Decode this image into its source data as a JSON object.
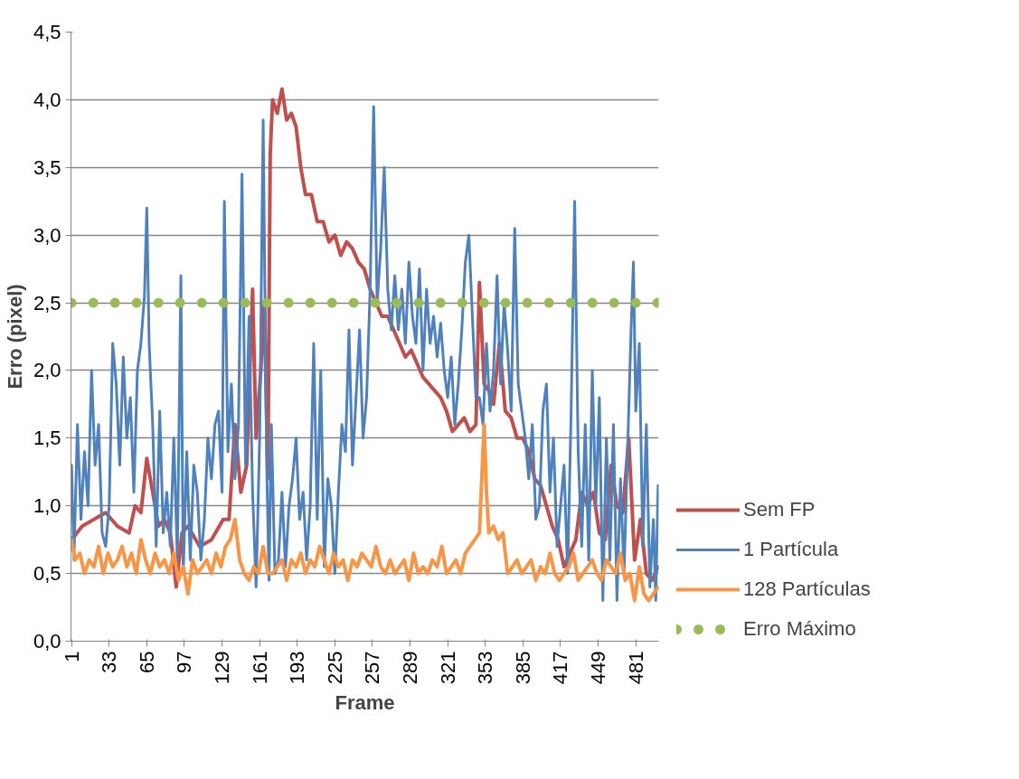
{
  "chart_data": {
    "type": "line",
    "xlabel": "Frame",
    "ylabel": "Erro (pixel)",
    "xlim": [
      0.5,
      500.5
    ],
    "xticks": [
      1,
      33,
      65,
      97,
      129,
      161,
      193,
      225,
      257,
      289,
      321,
      353,
      385,
      417,
      449,
      481
    ],
    "ylim": [
      0,
      4.5
    ],
    "yticks": [
      {
        "value": 0,
        "label": "0,0"
      },
      {
        "value": 0.5,
        "label": "0,5"
      },
      {
        "value": 1,
        "label": "1,0"
      },
      {
        "value": 1.5,
        "label": "1,5"
      },
      {
        "value": 2,
        "label": "2,0"
      },
      {
        "value": 2.5,
        "label": "2,5"
      },
      {
        "value": 3,
        "label": "3,0"
      },
      {
        "value": 3.5,
        "label": "3,5"
      },
      {
        "value": 4,
        "label": "4,0"
      },
      {
        "value": 4.5,
        "label": "4,5"
      }
    ],
    "grid": "y",
    "legend": "right",
    "marker": "none",
    "series": [
      {
        "name": "Sem FP",
        "color": "#c0504d",
        "line_style": "solid",
        "x": [
          1,
          10,
          20,
          30,
          40,
          50,
          55,
          60,
          65,
          70,
          75,
          80,
          85,
          90,
          95,
          100,
          110,
          120,
          130,
          135,
          140,
          145,
          150,
          155,
          158,
          162,
          165,
          168,
          170,
          172,
          176,
          180,
          184,
          188,
          192,
          196,
          200,
          205,
          210,
          215,
          220,
          225,
          230,
          235,
          240,
          245,
          250,
          255,
          260,
          265,
          270,
          275,
          280,
          285,
          290,
          295,
          300,
          305,
          310,
          315,
          320,
          325,
          330,
          335,
          340,
          345,
          348,
          352,
          356,
          360,
          365,
          370,
          375,
          380,
          385,
          390,
          395,
          400,
          405,
          410,
          415,
          420,
          425,
          430,
          435,
          440,
          445,
          450,
          455,
          460,
          465,
          470,
          475,
          480,
          485,
          490,
          495,
          500
        ],
        "values": [
          0.75,
          0.85,
          0.9,
          0.95,
          0.85,
          0.8,
          1.0,
          0.95,
          1.35,
          1.1,
          0.85,
          0.9,
          0.8,
          0.4,
          0.8,
          0.85,
          0.7,
          0.75,
          0.9,
          0.9,
          1.6,
          1.1,
          1.3,
          2.6,
          1.5,
          2.0,
          2.5,
          1.2,
          3.6,
          4.0,
          3.9,
          4.08,
          3.85,
          3.9,
          3.8,
          3.5,
          3.3,
          3.3,
          3.1,
          3.1,
          2.95,
          3.0,
          2.85,
          2.95,
          2.9,
          2.8,
          2.75,
          2.6,
          2.5,
          2.4,
          2.4,
          2.3,
          2.2,
          2.1,
          2.15,
          2.05,
          1.95,
          1.9,
          1.85,
          1.8,
          1.7,
          1.55,
          1.6,
          1.65,
          1.55,
          1.6,
          2.65,
          1.9,
          1.85,
          1.75,
          2.2,
          1.7,
          1.65,
          1.5,
          1.5,
          1.4,
          1.2,
          1.15,
          1.0,
          0.85,
          0.75,
          0.55,
          0.65,
          0.75,
          1.1,
          1.0,
          1.1,
          0.8,
          0.75,
          1.3,
          1.0,
          0.95,
          1.5,
          0.6,
          0.9,
          0.5,
          0.45,
          0.55
        ]
      },
      {
        "name": "1 Partícula",
        "color": "#4f81bd",
        "line_style": "solid",
        "x": [
          1,
          3,
          6,
          9,
          12,
          15,
          18,
          21,
          24,
          27,
          30,
          33,
          36,
          39,
          42,
          45,
          48,
          51,
          54,
          57,
          60,
          63,
          65,
          67,
          70,
          73,
          76,
          79,
          82,
          85,
          88,
          91,
          94,
          96,
          99,
          102,
          105,
          108,
          111,
          114,
          117,
          120,
          123,
          126,
          129,
          131,
          134,
          137,
          140,
          143,
          146,
          149,
          152,
          155,
          158,
          161,
          164,
          167,
          169,
          171,
          174,
          177,
          180,
          183,
          186,
          189,
          192,
          195,
          198,
          201,
          204,
          207,
          210,
          213,
          216,
          219,
          222,
          225,
          228,
          231,
          234,
          237,
          240,
          243,
          246,
          249,
          252,
          255,
          258,
          261,
          264,
          267,
          270,
          273,
          276,
          279,
          282,
          285,
          288,
          291,
          294,
          297,
          300,
          303,
          306,
          309,
          312,
          315,
          318,
          321,
          324,
          327,
          330,
          333,
          336,
          339,
          342,
          345,
          348,
          351,
          354,
          357,
          360,
          363,
          366,
          369,
          372,
          375,
          378,
          381,
          384,
          387,
          390,
          393,
          396,
          399,
          402,
          405,
          408,
          411,
          414,
          417,
          420,
          423,
          426,
          429,
          432,
          435,
          438,
          441,
          444,
          447,
          450,
          453,
          456,
          459,
          462,
          465,
          468,
          471,
          474,
          477,
          479,
          481,
          484,
          487,
          490,
          493,
          496,
          498,
          500
        ],
        "values": [
          1.3,
          0.6,
          1.6,
          0.9,
          1.4,
          1.0,
          2.0,
          1.3,
          1.6,
          0.8,
          0.7,
          1.0,
          2.2,
          1.9,
          1.3,
          2.1,
          1.5,
          1.8,
          1.1,
          2.0,
          2.2,
          2.55,
          3.2,
          2.2,
          1.6,
          0.7,
          1.7,
          0.8,
          1.1,
          0.7,
          1.5,
          0.6,
          2.7,
          0.5,
          1.4,
          0.6,
          1.3,
          1.1,
          0.6,
          0.9,
          1.5,
          1.2,
          1.6,
          1.7,
          1.1,
          3.25,
          1.4,
          1.9,
          1.2,
          1.6,
          3.45,
          1.3,
          2.4,
          1.1,
          0.4,
          1.5,
          3.85,
          1.3,
          0.45,
          1.6,
          0.5,
          0.6,
          1.1,
          0.55,
          1.0,
          1.2,
          1.5,
          0.9,
          1.1,
          0.6,
          1.0,
          2.2,
          0.9,
          2.0,
          0.55,
          1.2,
          1.0,
          0.5,
          1.1,
          1.6,
          1.4,
          2.3,
          1.3,
          1.8,
          2.3,
          1.5,
          1.8,
          2.6,
          3.95,
          2.5,
          2.9,
          3.5,
          2.6,
          2.3,
          2.7,
          2.3,
          2.6,
          2.2,
          2.8,
          2.4,
          2.2,
          2.75,
          2.0,
          2.6,
          2.2,
          2.4,
          2.1,
          2.35,
          2.0,
          1.8,
          2.1,
          1.6,
          1.9,
          2.3,
          2.8,
          3.0,
          2.4,
          1.8,
          1.8,
          1.6,
          2.2,
          1.7,
          2.0,
          2.7,
          1.9,
          2.5,
          2.15,
          1.7,
          3.05,
          1.9,
          1.7,
          1.5,
          1.2,
          1.6,
          0.9,
          1.0,
          1.7,
          1.9,
          1.1,
          1.5,
          0.7,
          1.0,
          1.3,
          0.5,
          1.7,
          3.25,
          1.4,
          0.7,
          1.6,
          0.6,
          2.0,
          1.0,
          1.8,
          0.3,
          1.5,
          0.6,
          1.6,
          0.3,
          1.2,
          0.5,
          1.4,
          2.3,
          2.8,
          1.7,
          2.2,
          0.7,
          1.6,
          0.4,
          0.9,
          0.3,
          1.15
        ]
      },
      {
        "name": "128 Partículas",
        "color": "#f79646",
        "line_style": "solid",
        "x": [
          1,
          4,
          8,
          12,
          16,
          20,
          24,
          28,
          32,
          36,
          40,
          44,
          48,
          52,
          56,
          60,
          64,
          68,
          72,
          76,
          80,
          84,
          88,
          92,
          96,
          100,
          104,
          108,
          112,
          116,
          120,
          124,
          128,
          132,
          136,
          140,
          144,
          148,
          152,
          156,
          160,
          164,
          168,
          172,
          176,
          180,
          184,
          188,
          192,
          196,
          200,
          204,
          208,
          212,
          216,
          220,
          224,
          228,
          232,
          236,
          240,
          244,
          248,
          252,
          256,
          260,
          264,
          268,
          272,
          276,
          280,
          284,
          288,
          292,
          296,
          300,
          304,
          308,
          312,
          316,
          320,
          324,
          328,
          332,
          336,
          340,
          344,
          348,
          350,
          352,
          354,
          356,
          360,
          364,
          368,
          372,
          376,
          380,
          384,
          388,
          392,
          396,
          400,
          404,
          408,
          412,
          416,
          420,
          424,
          428,
          432,
          436,
          440,
          444,
          448,
          452,
          456,
          460,
          464,
          468,
          472,
          476,
          480,
          484,
          488,
          492,
          496,
          500
        ],
        "values": [
          0.75,
          0.6,
          0.65,
          0.5,
          0.6,
          0.55,
          0.7,
          0.5,
          0.65,
          0.55,
          0.6,
          0.7,
          0.55,
          0.65,
          0.5,
          0.75,
          0.6,
          0.5,
          0.65,
          0.55,
          0.6,
          0.5,
          0.65,
          0.45,
          0.55,
          0.35,
          0.6,
          0.5,
          0.55,
          0.6,
          0.5,
          0.65,
          0.55,
          0.7,
          0.75,
          0.9,
          0.6,
          0.5,
          0.45,
          0.55,
          0.5,
          0.7,
          0.5,
          0.5,
          0.55,
          0.6,
          0.45,
          0.6,
          0.55,
          0.65,
          0.5,
          0.6,
          0.55,
          0.7,
          0.6,
          0.5,
          0.65,
          0.55,
          0.6,
          0.45,
          0.6,
          0.55,
          0.65,
          0.6,
          0.55,
          0.7,
          0.55,
          0.5,
          0.6,
          0.5,
          0.55,
          0.6,
          0.45,
          0.65,
          0.5,
          0.55,
          0.5,
          0.6,
          0.55,
          0.7,
          0.5,
          0.55,
          0.6,
          0.5,
          0.65,
          0.7,
          0.75,
          0.8,
          1.2,
          1.6,
          1.1,
          0.8,
          0.85,
          0.75,
          0.8,
          0.5,
          0.55,
          0.6,
          0.5,
          0.55,
          0.6,
          0.45,
          0.55,
          0.5,
          0.65,
          0.5,
          0.45,
          0.5,
          0.55,
          0.65,
          0.45,
          0.5,
          0.55,
          0.6,
          0.5,
          0.45,
          0.6,
          0.55,
          0.5,
          0.65,
          0.45,
          0.5,
          0.3,
          0.55,
          0.35,
          0.3,
          0.35,
          0.4
        ]
      },
      {
        "name": "Erro Máximo",
        "color": "#9bbb59",
        "line_style": "dotted",
        "x": [
          1,
          500
        ],
        "values": [
          2.5,
          2.5
        ]
      }
    ]
  }
}
